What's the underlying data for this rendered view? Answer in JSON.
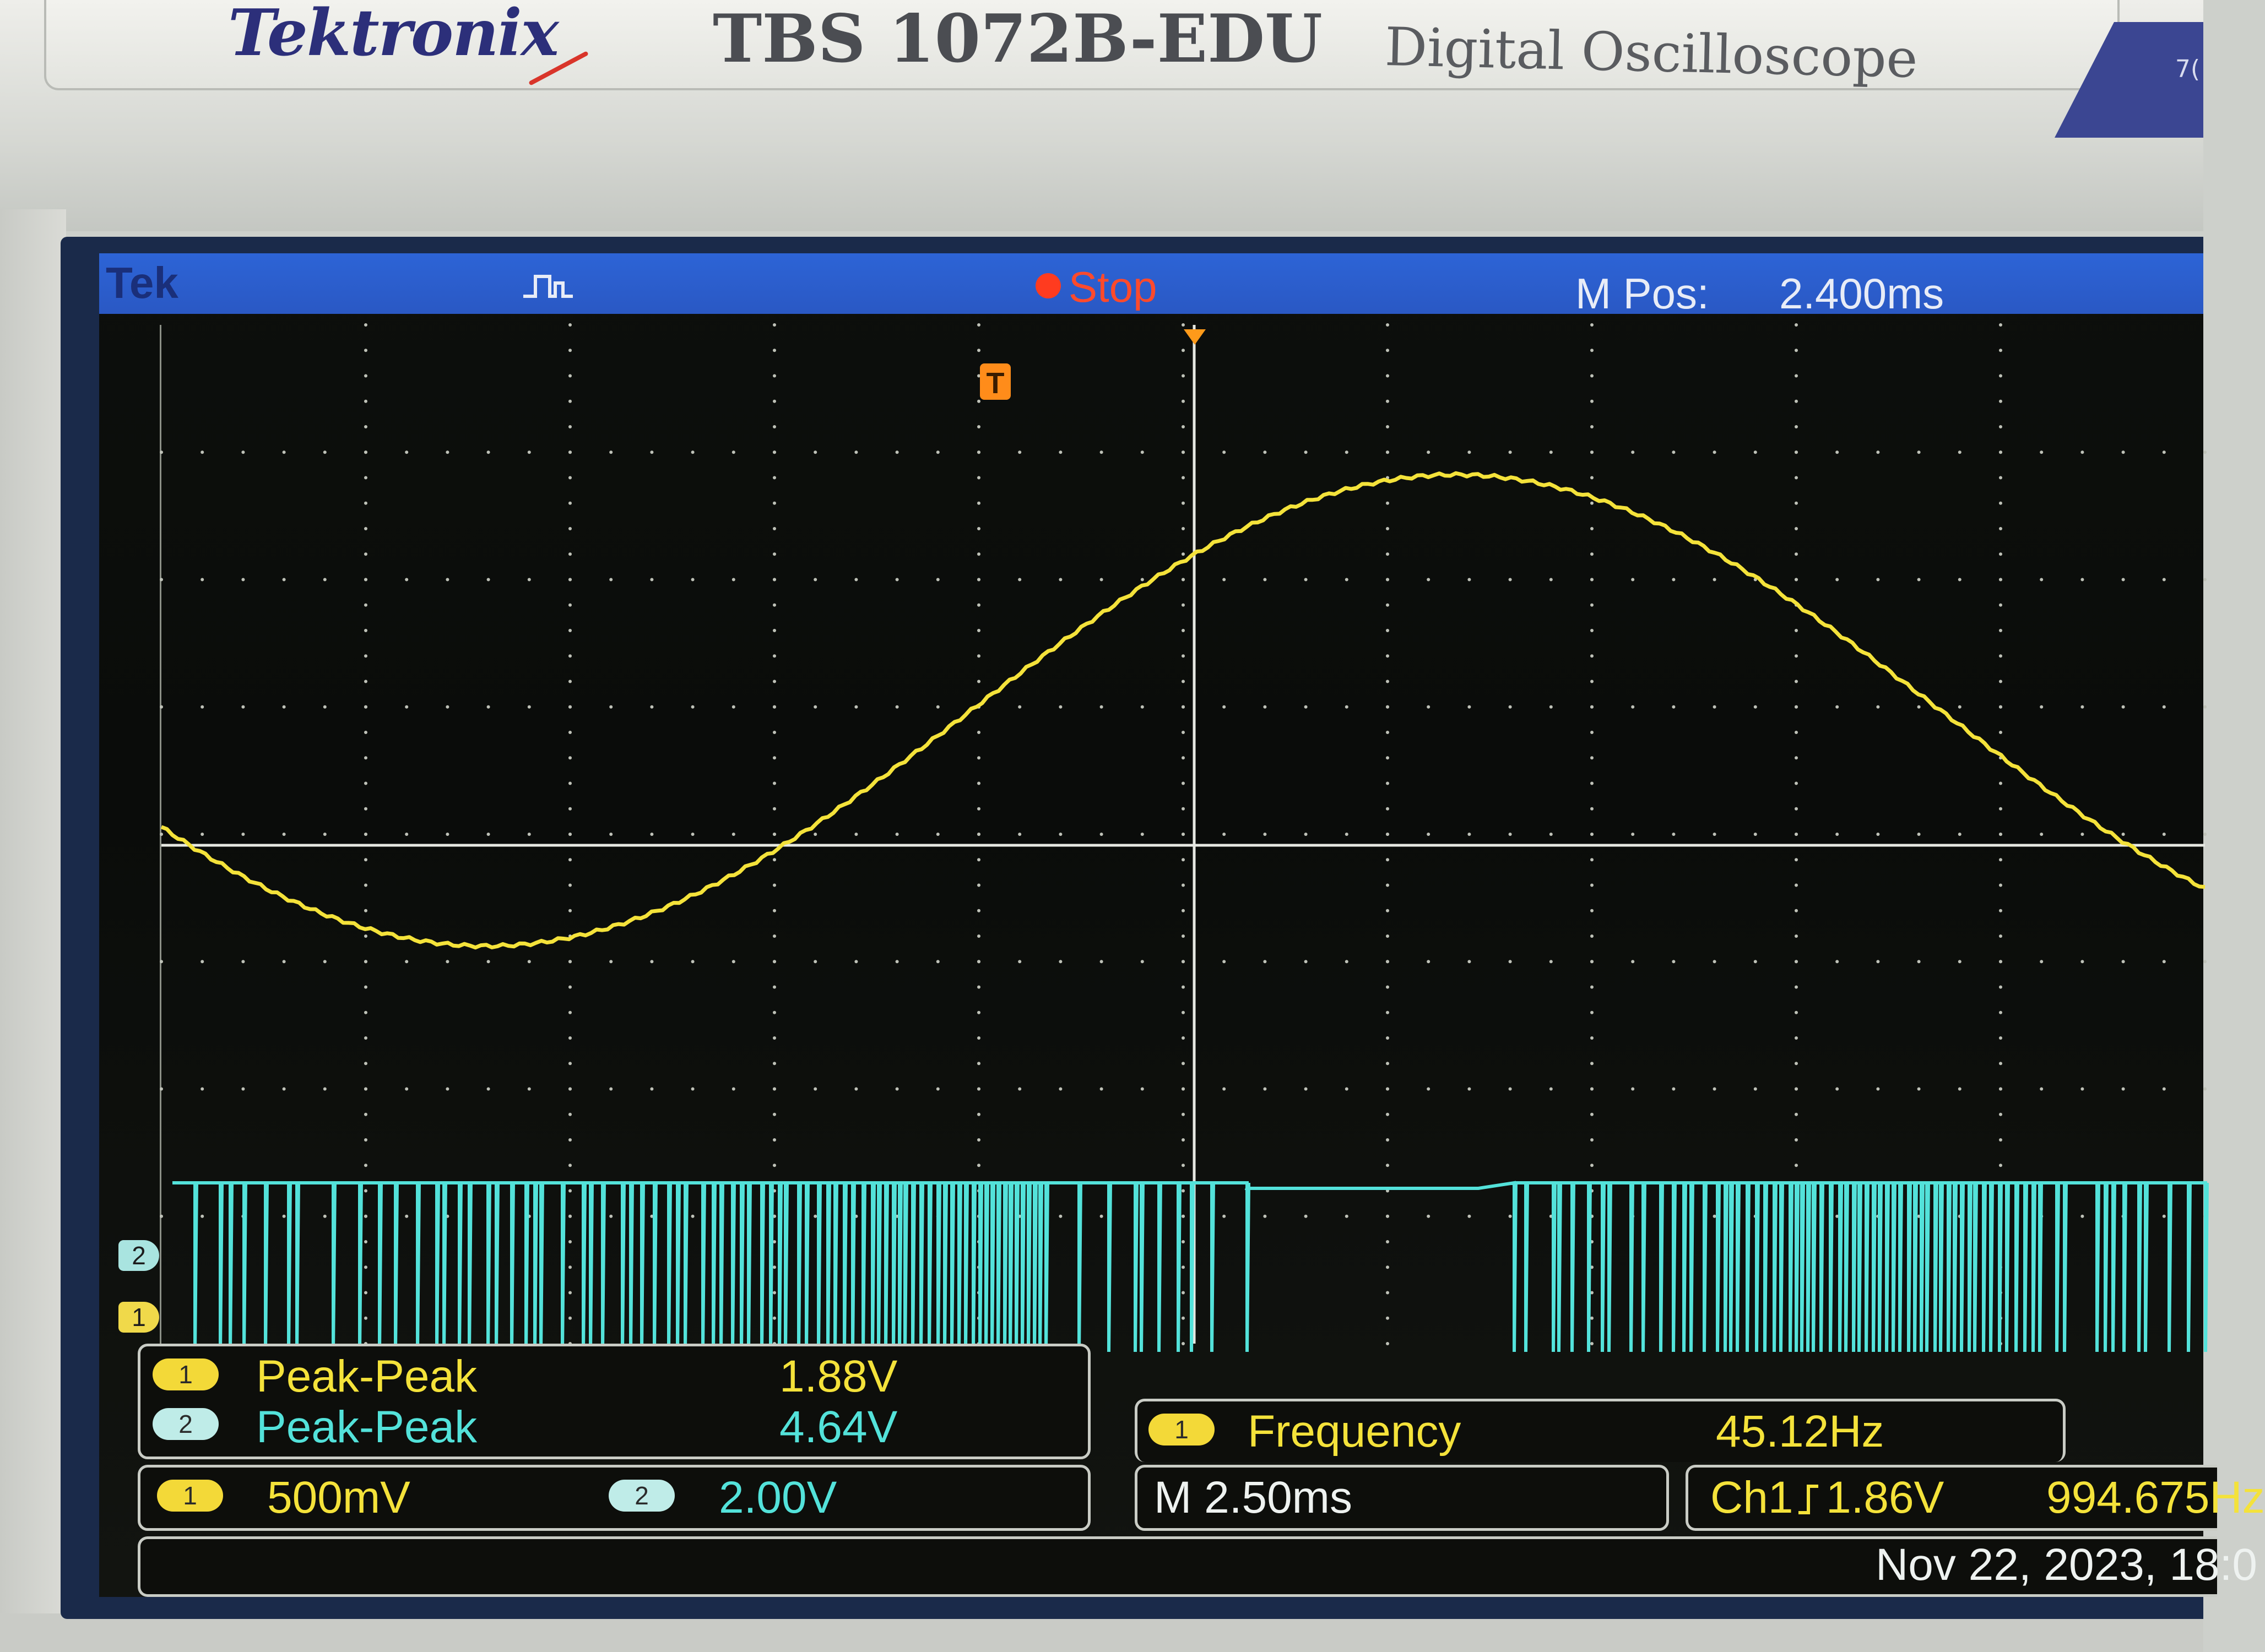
{
  "instrument": {
    "brand": "Tektronix",
    "model": "TBS 1072B-EDU",
    "subtitle": "Digital Oscilloscope",
    "badge_text": "7("
  },
  "status_bar": {
    "logo": "Tek",
    "acquisition_icon": "pulse-icon",
    "run_state": "Stop",
    "mpos_label": "M Pos:",
    "mpos_value": "2.400ms",
    "trigger_marker": "T"
  },
  "channels": {
    "ch1_marker": "1",
    "ch2_marker": "2",
    "ch1_color": "#f4e23a",
    "ch2_color": "#53e2da"
  },
  "measurements": [
    {
      "channel": "1",
      "name": "Peak-Peak",
      "value": "1.88V"
    },
    {
      "channel": "2",
      "name": "Peak-Peak",
      "value": "4.64V"
    }
  ],
  "frequency": {
    "channel": "1",
    "name": "Frequency",
    "value": "45.12Hz"
  },
  "scale": {
    "ch1_channel": "1",
    "ch1_scale": "500mV",
    "ch2_channel": "2",
    "ch2_scale": "2.00V"
  },
  "timebase": "M 2.50ms",
  "trigger": {
    "source": "Ch1",
    "slope_icon": "rising-edge-icon",
    "level": "1.86V",
    "trigger_freq": "994.675Hz"
  },
  "date": "Nov 22, 2023, 18:0"
}
